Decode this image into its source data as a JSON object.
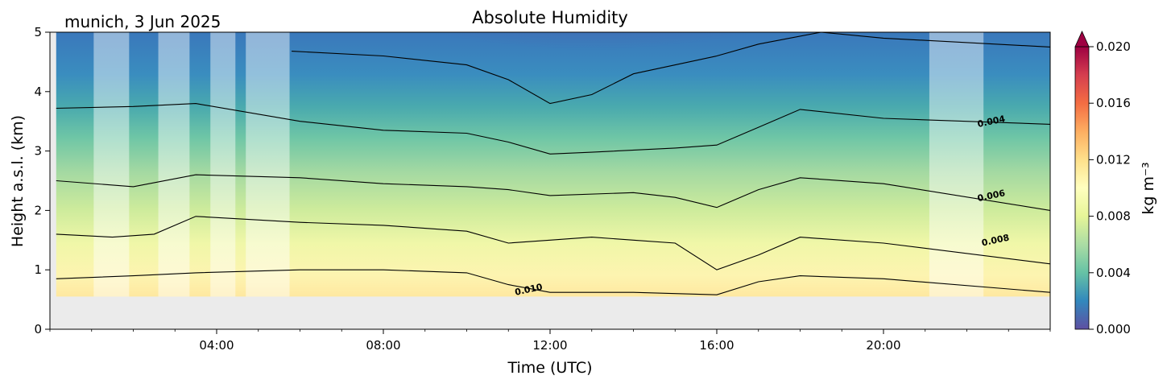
{
  "chart_data": {
    "type": "heatmap",
    "title": "Absolute Humidity",
    "location_label": "munich, 3 Jun 2025",
    "xlabel": "Time (UTC)",
    "ylabel": "Height a.s.l. (km)",
    "x_ticks": [
      "04:00",
      "08:00",
      "12:00",
      "16:00",
      "20:00"
    ],
    "x_tick_hours": [
      4,
      8,
      12,
      16,
      20
    ],
    "xlim_hours": [
      0,
      24
    ],
    "y_ticks": [
      "0",
      "1",
      "2",
      "3",
      "4",
      "5"
    ],
    "ylim": [
      0,
      5
    ],
    "ground_height_km": 0.55,
    "colorbar": {
      "label": "kg m⁻³",
      "ticks": [
        "0.000",
        "0.004",
        "0.008",
        "0.012",
        "0.016",
        "0.020"
      ],
      "range": [
        0.0,
        0.02
      ],
      "extend": "max",
      "colormap": "Spectral_r"
    },
    "contour_levels": [
      0.002,
      0.004,
      0.006,
      0.008,
      0.01
    ],
    "contour_labels": [
      {
        "text": "0.004",
        "hour": 22.6,
        "height_km": 3.45
      },
      {
        "text": "0.006",
        "hour": 22.6,
        "height_km": 2.2
      },
      {
        "text": "0.008",
        "hour": 22.7,
        "height_km": 1.45
      },
      {
        "text": "0.010",
        "hour": 11.5,
        "height_km": 0.62
      }
    ],
    "data_gaps_hours": [
      [
        1.05,
        1.9
      ],
      [
        2.6,
        3.35
      ],
      [
        3.85,
        4.45
      ],
      [
        4.7,
        5.75
      ],
      [
        21.1,
        22.4
      ]
    ],
    "contours": [
      {
        "level": 0.002,
        "points": [
          [
            5.8,
            4.68
          ],
          [
            8,
            4.6
          ],
          [
            10,
            4.45
          ],
          [
            11,
            4.2
          ],
          [
            12,
            3.8
          ],
          [
            13,
            3.95
          ],
          [
            14,
            4.3
          ],
          [
            16,
            4.6
          ],
          [
            17,
            4.8
          ],
          [
            18.5,
            5.0
          ],
          [
            20,
            4.9
          ],
          [
            24,
            4.75
          ]
        ]
      },
      {
        "level": 0.004,
        "points": [
          [
            0.15,
            3.72
          ],
          [
            2,
            3.75
          ],
          [
            3.5,
            3.8
          ],
          [
            6,
            3.5
          ],
          [
            8,
            3.35
          ],
          [
            10,
            3.3
          ],
          [
            11,
            3.15
          ],
          [
            12,
            2.95
          ],
          [
            13,
            2.98
          ],
          [
            15,
            3.05
          ],
          [
            16,
            3.1
          ],
          [
            17,
            3.4
          ],
          [
            18,
            3.7
          ],
          [
            20,
            3.55
          ],
          [
            24,
            3.45
          ]
        ]
      },
      {
        "level": 0.006,
        "points": [
          [
            0.15,
            2.5
          ],
          [
            2,
            2.4
          ],
          [
            3.5,
            2.6
          ],
          [
            6,
            2.55
          ],
          [
            8,
            2.45
          ],
          [
            10,
            2.4
          ],
          [
            11,
            2.35
          ],
          [
            12,
            2.25
          ],
          [
            14,
            2.3
          ],
          [
            15,
            2.22
          ],
          [
            16,
            2.05
          ],
          [
            17,
            2.35
          ],
          [
            18,
            2.55
          ],
          [
            20,
            2.45
          ],
          [
            24,
            2.0
          ]
        ]
      },
      {
        "level": 0.008,
        "points": [
          [
            0.15,
            1.6
          ],
          [
            1.5,
            1.55
          ],
          [
            2.5,
            1.6
          ],
          [
            3.5,
            1.9
          ],
          [
            6,
            1.8
          ],
          [
            8,
            1.75
          ],
          [
            10,
            1.65
          ],
          [
            11,
            1.45
          ],
          [
            12,
            1.5
          ],
          [
            13,
            1.55
          ],
          [
            14,
            1.5
          ],
          [
            15,
            1.45
          ],
          [
            16,
            1.0
          ],
          [
            17,
            1.25
          ],
          [
            18,
            1.55
          ],
          [
            20,
            1.45
          ],
          [
            24,
            1.1
          ]
        ]
      },
      {
        "level": 0.01,
        "points": [
          [
            0.15,
            0.85
          ],
          [
            2,
            0.9
          ],
          [
            3.5,
            0.95
          ],
          [
            6,
            1.0
          ],
          [
            8,
            1.0
          ],
          [
            10,
            0.95
          ],
          [
            11,
            0.75
          ],
          [
            12,
            0.62
          ],
          [
            14,
            0.62
          ],
          [
            15,
            0.6
          ],
          [
            16,
            0.58
          ],
          [
            17,
            0.8
          ],
          [
            18,
            0.9
          ],
          [
            20,
            0.85
          ],
          [
            24,
            0.62
          ]
        ]
      }
    ]
  }
}
